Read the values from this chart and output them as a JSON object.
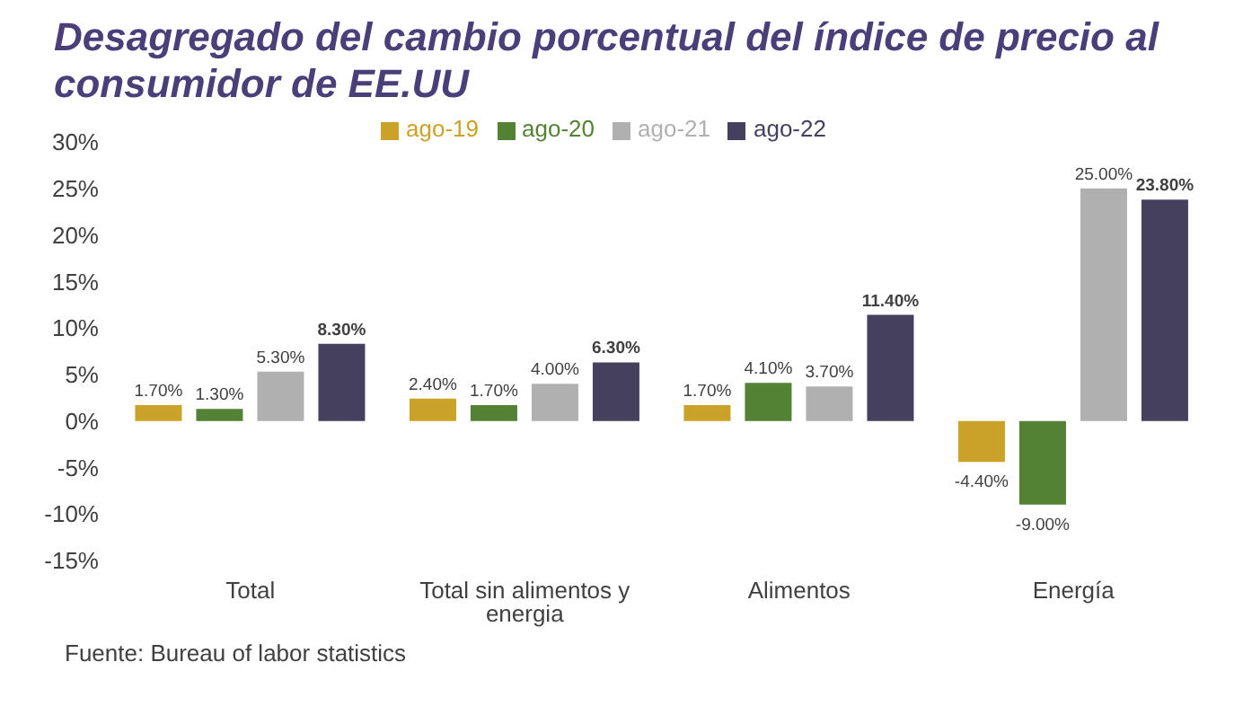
{
  "chart_data": {
    "type": "bar",
    "title": "Desagregado del cambio porcentual del índice de precio al consumidor de EE.UU",
    "categories": [
      "Total",
      "Total sin alimentos y energia",
      "Alimentos",
      "Energía"
    ],
    "series": [
      {
        "name": "ago-19",
        "color": "#c9a227",
        "values": [
          1.7,
          2.4,
          1.7,
          -4.4
        ],
        "value_labels": [
          "1.70%",
          "2.40%",
          "1.70%",
          "-4.40%"
        ]
      },
      {
        "name": "ago-20",
        "color": "#548235",
        "values": [
          1.3,
          1.7,
          4.1,
          -9.0
        ],
        "value_labels": [
          "1.30%",
          "1.70%",
          "4.10%",
          "-9.00%"
        ]
      },
      {
        "name": "ago-21",
        "color": "#b0b0b0",
        "values": [
          5.3,
          4.0,
          3.7,
          25.0
        ],
        "value_labels": [
          "5.30%",
          "4.00%",
          "3.70%",
          "25.00%"
        ]
      },
      {
        "name": "ago-22",
        "color": "#46405f",
        "values": [
          8.3,
          6.3,
          11.4,
          23.8
        ],
        "value_labels": [
          "8.30%",
          "6.30%",
          "11.40%",
          "23.80%"
        ]
      }
    ],
    "ylim": [
      -15,
      30
    ],
    "yticks": [
      {
        "value": -15,
        "label": "-15%"
      },
      {
        "value": -10,
        "label": "-10%"
      },
      {
        "value": -5,
        "label": "-5%"
      },
      {
        "value": 0,
        "label": "0%"
      },
      {
        "value": 5,
        "label": "5%"
      },
      {
        "value": 10,
        "label": "10%"
      },
      {
        "value": 15,
        "label": "15%"
      },
      {
        "value": 20,
        "label": "20%"
      },
      {
        "value": 25,
        "label": "25%"
      },
      {
        "value": 30,
        "label": "30%"
      }
    ],
    "grid": false,
    "legend": "top",
    "annotations": [
      "Fuente: Bureau of labor statistics"
    ]
  }
}
